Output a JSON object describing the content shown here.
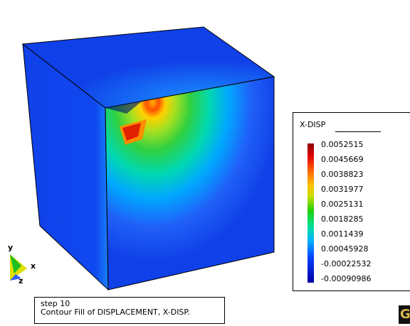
{
  "legend": {
    "title": "X-DISP",
    "values": [
      "0.0052515",
      "0.0045669",
      "0.0038823",
      "0.0031977",
      "0.0025131",
      "0.0018285",
      "0.0011439",
      "0.00045928",
      "-0.00022532",
      "-0.00090986"
    ]
  },
  "axes": {
    "y": "y",
    "x": "x",
    "z": "z"
  },
  "caption": {
    "line1": "step 10",
    "line2": "Contour Fill of DISPLACEMENT, X-DISP."
  },
  "logo": {
    "text": "Gi"
  },
  "colors": {
    "background": "#ffffff",
    "cube_base": "#1040e8",
    "max": "#8b0000",
    "min": "#0000a0"
  }
}
